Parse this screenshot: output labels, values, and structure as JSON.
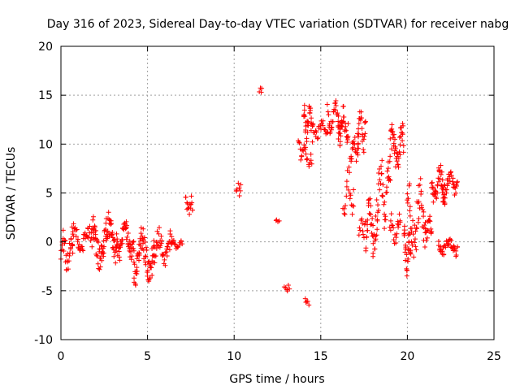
{
  "chart_data": {
    "type": "scatter",
    "title": "Day 316 of 2023, Sidereal Day-to-day VTEC variation (SDTVAR) for receiver nabg",
    "xlabel": "GPS time / hours",
    "ylabel": "SDTVAR / TECUs",
    "xlim": [
      0,
      25
    ],
    "ylim": [
      -10,
      20
    ],
    "xticks": [
      0,
      5,
      10,
      15,
      20,
      25
    ],
    "yticks": [
      -10,
      -5,
      0,
      5,
      10,
      15,
      20
    ],
    "grid": true,
    "marker": "+",
    "series": [
      {
        "name": "SDTVAR",
        "color": "#ff0000",
        "segments": [
          {
            "x0": 0.0,
            "x1": 0.7,
            "ymin": -3.5,
            "ymax": 1.5,
            "n": 30
          },
          {
            "x0": 0.6,
            "x1": 1.8,
            "ymin": -1.5,
            "ymax": 2.0,
            "n": 40
          },
          {
            "x0": 1.8,
            "x1": 3.2,
            "ymin": -3.0,
            "ymax": 3.2,
            "n": 80
          },
          {
            "x0": 3.2,
            "x1": 4.2,
            "ymin": -2.0,
            "ymax": 2.3,
            "n": 55
          },
          {
            "x0": 4.2,
            "x1": 5.4,
            "ymin": -4.5,
            "ymax": 1.5,
            "n": 70
          },
          {
            "x0": 5.4,
            "x1": 6.4,
            "ymin": -2.8,
            "ymax": 1.5,
            "n": 40
          },
          {
            "x0": 6.4,
            "x1": 7.0,
            "ymin": -1.0,
            "ymax": 0.3,
            "n": 15
          },
          {
            "x0": 7.2,
            "x1": 7.6,
            "ymin": 2.5,
            "ymax": 4.8,
            "n": 15
          },
          {
            "x0": 10.1,
            "x1": 10.4,
            "ymin": 4.5,
            "ymax": 6.3,
            "n": 8
          },
          {
            "x0": 11.45,
            "x1": 11.6,
            "ymin": 15.0,
            "ymax": 15.8,
            "n": 4
          },
          {
            "x0": 12.4,
            "x1": 12.6,
            "ymin": 2.0,
            "ymax": 2.3,
            "n": 4
          },
          {
            "x0": 12.9,
            "x1": 13.2,
            "ymin": -5.2,
            "ymax": -4.3,
            "n": 6
          },
          {
            "x0": 14.1,
            "x1": 14.3,
            "ymin": -6.5,
            "ymax": -5.7,
            "n": 5
          },
          {
            "x0": 13.7,
            "x1": 14.2,
            "ymin": 8.0,
            "ymax": 10.5,
            "n": 15
          },
          {
            "x0": 14.0,
            "x1": 14.5,
            "ymin": 10.0,
            "ymax": 14.5,
            "n": 30
          },
          {
            "x0": 14.2,
            "x1": 14.5,
            "ymin": 7.5,
            "ymax": 9.0,
            "n": 8
          },
          {
            "x0": 14.5,
            "x1": 15.4,
            "ymin": 10.5,
            "ymax": 12.5,
            "n": 25
          },
          {
            "x0": 15.4,
            "x1": 16.2,
            "ymin": 11.0,
            "ymax": 14.8,
            "n": 35
          },
          {
            "x0": 16.0,
            "x1": 16.6,
            "ymin": 9.5,
            "ymax": 14.0,
            "n": 30
          },
          {
            "x0": 16.3,
            "x1": 16.9,
            "ymin": 2.0,
            "ymax": 8.0,
            "n": 20
          },
          {
            "x0": 16.7,
            "x1": 17.2,
            "ymin": 8.0,
            "ymax": 11.5,
            "n": 20
          },
          {
            "x0": 17.1,
            "x1": 17.6,
            "ymin": 9.0,
            "ymax": 13.8,
            "n": 25
          },
          {
            "x0": 17.2,
            "x1": 17.6,
            "ymin": 0.0,
            "ymax": 3.5,
            "n": 12
          },
          {
            "x0": 17.6,
            "x1": 18.3,
            "ymin": -2.0,
            "ymax": 5.0,
            "n": 40
          },
          {
            "x0": 18.3,
            "x1": 19.0,
            "ymin": 1.0,
            "ymax": 9.0,
            "n": 35
          },
          {
            "x0": 19.0,
            "x1": 19.8,
            "ymin": 6.5,
            "ymax": 12.5,
            "n": 45
          },
          {
            "x0": 19.0,
            "x1": 19.6,
            "ymin": -0.5,
            "ymax": 3.0,
            "n": 20
          },
          {
            "x0": 19.8,
            "x1": 20.2,
            "ymin": -3.5,
            "ymax": 2.0,
            "n": 30
          },
          {
            "x0": 20.0,
            "x1": 21.0,
            "ymin": -2.0,
            "ymax": 6.5,
            "n": 45
          },
          {
            "x0": 21.0,
            "x1": 21.4,
            "ymin": 0.0,
            "ymax": 3.0,
            "n": 20
          },
          {
            "x0": 21.4,
            "x1": 22.2,
            "ymin": 3.5,
            "ymax": 8.0,
            "n": 40
          },
          {
            "x0": 22.0,
            "x1": 22.9,
            "ymin": 4.5,
            "ymax": 7.5,
            "n": 35
          },
          {
            "x0": 21.8,
            "x1": 22.9,
            "ymin": -1.5,
            "ymax": 0.5,
            "n": 40
          }
        ]
      }
    ]
  }
}
